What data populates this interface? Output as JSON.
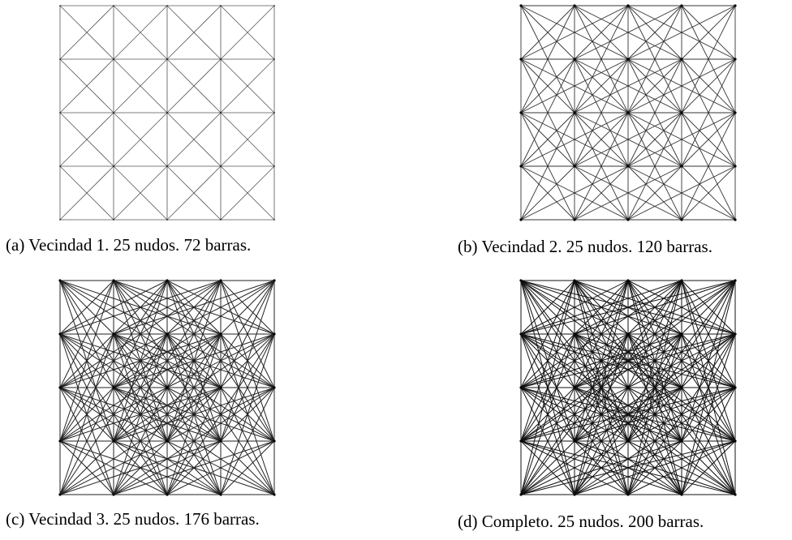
{
  "figures": [
    {
      "id": "a",
      "caption": "(a) Vecindad 1. 25 nudos. 72 barras.",
      "grid_nodes_per_side": 5,
      "nodes": 25,
      "bars": 72,
      "neighborhood": 1,
      "stroke_color": "#555555"
    },
    {
      "id": "b",
      "caption": "(b) Vecindad 2. 25 nudos. 120 barras.",
      "grid_nodes_per_side": 5,
      "nodes": 25,
      "bars": 120,
      "neighborhood": 2,
      "stroke_color": "#333333"
    },
    {
      "id": "c",
      "caption": "(c) Vecindad 3. 25 nudos. 176 barras.",
      "grid_nodes_per_side": 5,
      "nodes": 25,
      "bars": 176,
      "neighborhood": 3,
      "stroke_color": "#222222"
    },
    {
      "id": "d",
      "caption": "(d) Completo. 25 nudos. 200 barras.",
      "grid_nodes_per_side": 5,
      "nodes": 25,
      "bars": 200,
      "neighborhood": 4,
      "stroke_color": "#111111"
    }
  ]
}
